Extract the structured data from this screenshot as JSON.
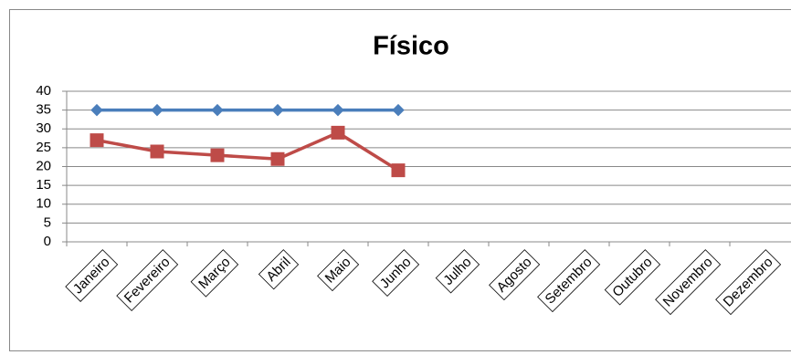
{
  "chart_data": {
    "type": "line",
    "title": "Físico",
    "categories": [
      "Janeiro",
      "Fevereiro",
      "Março",
      "Abril",
      "Maio",
      "Junho",
      "Julho",
      "Agosto",
      "Setembro",
      "Outubro",
      "Novembro",
      "Dezembro"
    ],
    "series": [
      {
        "color": "#4a7ebb",
        "marker": "diamond",
        "values": [
          35,
          35,
          35,
          35,
          35,
          35,
          null,
          null,
          null,
          null,
          null,
          null
        ]
      },
      {
        "color": "#be4b48",
        "marker": "square",
        "values": [
          27,
          24,
          23,
          22,
          29,
          19,
          null,
          null,
          null,
          null,
          null,
          null
        ]
      }
    ],
    "ylim": [
      0,
      40
    ],
    "yticks": [
      0,
      5,
      10,
      15,
      20,
      25,
      30,
      35,
      40
    ],
    "grid": true
  }
}
